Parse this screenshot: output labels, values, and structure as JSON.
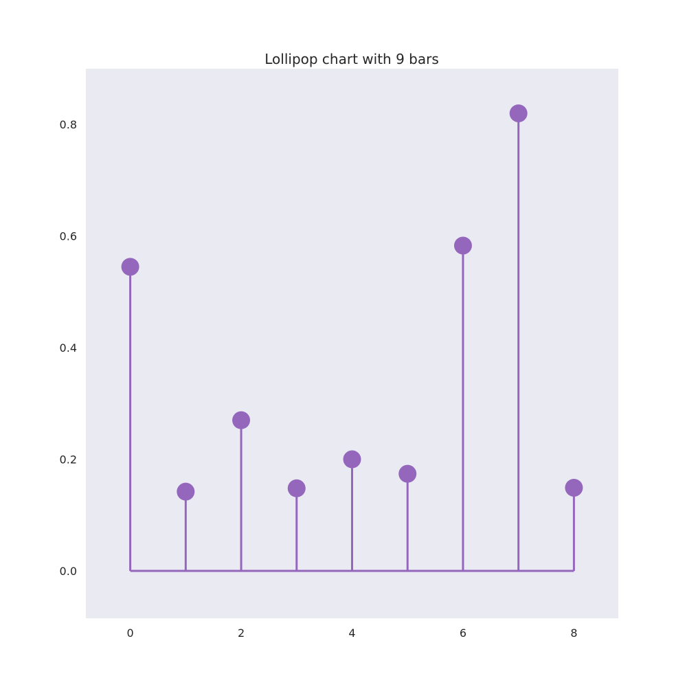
{
  "chart_data": {
    "type": "lollipop",
    "title": "Lollipop chart with 9 bars",
    "xlabel": "",
    "ylabel": "",
    "x": [
      0,
      1,
      2,
      3,
      4,
      5,
      6,
      7,
      8
    ],
    "values": [
      0.545,
      0.142,
      0.27,
      0.148,
      0.2,
      0.174,
      0.583,
      0.82,
      0.149
    ],
    "xlim": [
      -0.8,
      8.8
    ],
    "ylim": [
      -0.085,
      0.9
    ],
    "x_ticks": [
      0,
      2,
      4,
      6,
      8
    ],
    "x_tick_labels": [
      "0",
      "2",
      "4",
      "6",
      "8"
    ],
    "y_ticks": [
      0.0,
      0.2,
      0.4,
      0.6,
      0.8
    ],
    "y_tick_labels": [
      "0.0",
      "0.2",
      "0.4",
      "0.6",
      "0.8"
    ],
    "baseline": 0.0,
    "grid": false,
    "legend": "none",
    "colors": {
      "marker": "#9467bd",
      "plot_background": "#eaeaf2",
      "text": "#262626"
    }
  }
}
